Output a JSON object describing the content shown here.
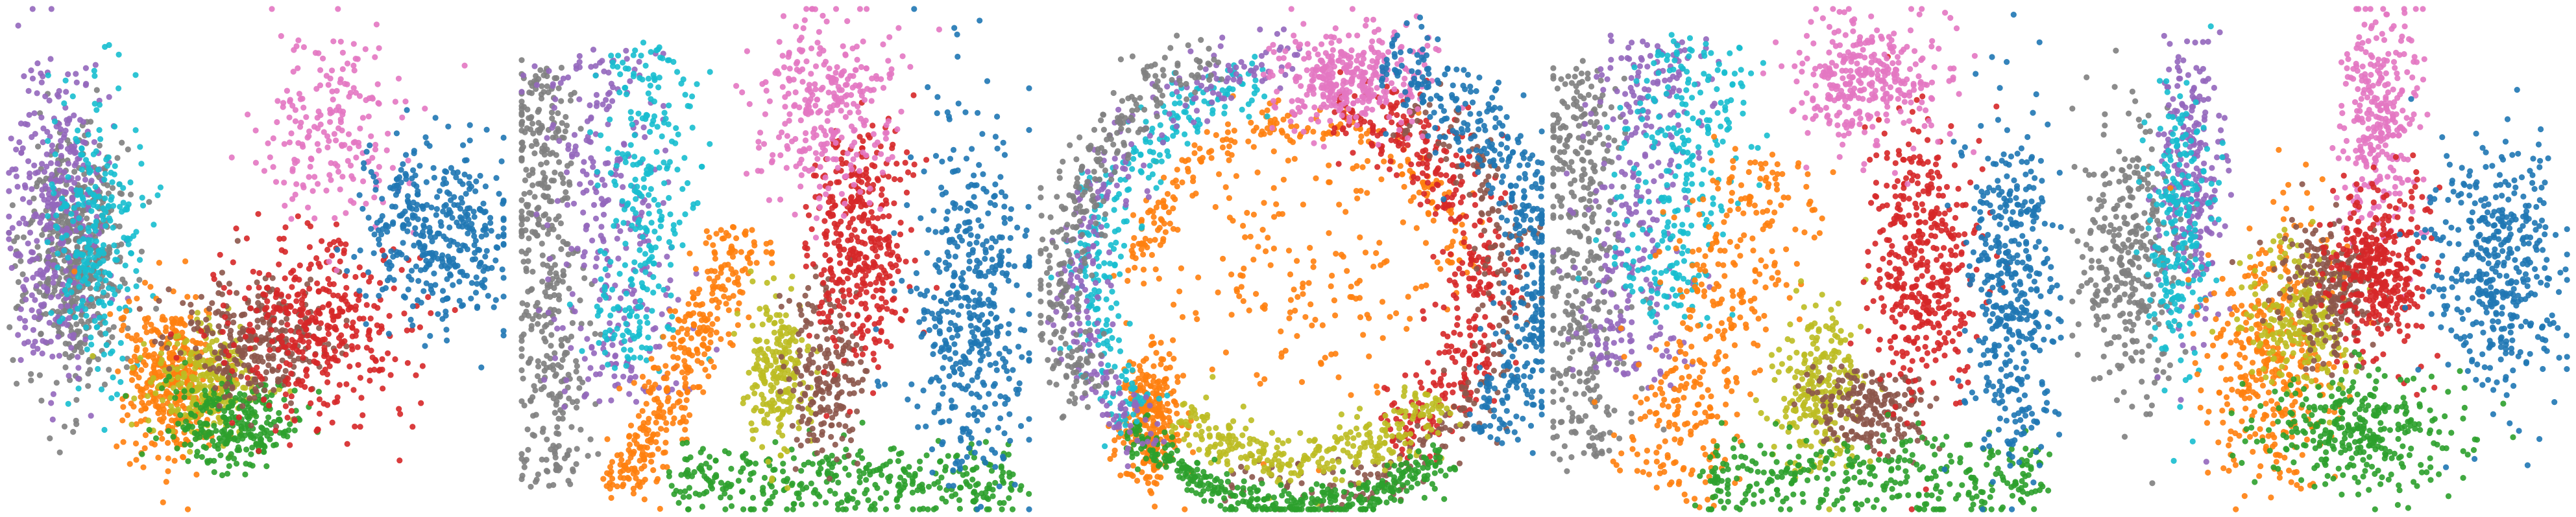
{
  "chart_data": {
    "type": "scatter",
    "axes_visible": false,
    "grid": false,
    "legend": "none",
    "point_opacity": 0.9,
    "cluster_colors": {
      "blue": "#1f77b4",
      "orange": "#ff7f0e",
      "green": "#2ca02c",
      "red": "#d62728",
      "purple": "#9467bd",
      "brown": "#8c564b",
      "pink": "#e377c2",
      "gray": "#7f7f7f",
      "olive": "#bcbd22",
      "cyan": "#17becf"
    },
    "panels": [
      {
        "id": "panel-1",
        "xlim": [
          0,
          1
        ],
        "ylim": [
          0,
          1
        ],
        "clusters": [
          {
            "color": "gray",
            "shape": "blob",
            "cx": 0.14,
            "cy": 0.5,
            "rx": 0.09,
            "ry": 0.23,
            "n": 520
          },
          {
            "color": "purple",
            "shape": "blob",
            "cx": 0.1,
            "cy": 0.42,
            "rx": 0.09,
            "ry": 0.28,
            "n": 340
          },
          {
            "color": "cyan",
            "shape": "blob",
            "cx": 0.18,
            "cy": 0.45,
            "rx": 0.08,
            "ry": 0.25,
            "n": 260
          },
          {
            "color": "orange",
            "shape": "blob",
            "cx": 0.33,
            "cy": 0.74,
            "rx": 0.09,
            "ry": 0.14,
            "n": 380
          },
          {
            "color": "olive",
            "shape": "blob",
            "cx": 0.4,
            "cy": 0.74,
            "rx": 0.1,
            "ry": 0.1,
            "n": 260
          },
          {
            "color": "green",
            "shape": "blob",
            "cx": 0.45,
            "cy": 0.82,
            "rx": 0.12,
            "ry": 0.09,
            "n": 260
          },
          {
            "color": "brown",
            "shape": "blob",
            "cx": 0.5,
            "cy": 0.66,
            "rx": 0.14,
            "ry": 0.11,
            "n": 280
          },
          {
            "color": "red",
            "shape": "blob",
            "cx": 0.62,
            "cy": 0.64,
            "rx": 0.16,
            "ry": 0.17,
            "n": 380
          },
          {
            "color": "pink",
            "shape": "blob",
            "cx": 0.65,
            "cy": 0.25,
            "rx": 0.13,
            "ry": 0.18,
            "n": 200
          },
          {
            "color": "blue",
            "shape": "blob",
            "cx": 0.86,
            "cy": 0.45,
            "rx": 0.13,
            "ry": 0.16,
            "n": 380
          }
        ]
      },
      {
        "id": "panel-2",
        "xlim": [
          0,
          1
        ],
        "ylim": [
          0,
          1
        ],
        "clusters": [
          {
            "color": "gray",
            "shape": "band",
            "x0": 0.04,
            "y0": 0.12,
            "x1": 0.07,
            "y1": 0.95,
            "spread": 0.035,
            "n": 420
          },
          {
            "color": "purple",
            "shape": "band",
            "x0": 0.14,
            "y0": 0.1,
            "x1": 0.22,
            "y1": 0.78,
            "spread": 0.06,
            "n": 300
          },
          {
            "color": "cyan",
            "shape": "band",
            "x0": 0.26,
            "y0": 0.08,
            "x1": 0.22,
            "y1": 0.72,
            "spread": 0.05,
            "n": 280
          },
          {
            "color": "orange",
            "shape": "band",
            "x0": 0.44,
            "y0": 0.45,
            "x1": 0.2,
            "y1": 0.97,
            "spread": 0.03,
            "n": 360
          },
          {
            "color": "green",
            "shape": "band",
            "x0": 0.3,
            "y0": 0.93,
            "x1": 0.98,
            "y1": 0.95,
            "spread": 0.035,
            "n": 360
          },
          {
            "color": "olive",
            "shape": "blob",
            "cx": 0.5,
            "cy": 0.72,
            "rx": 0.06,
            "ry": 0.13,
            "n": 220
          },
          {
            "color": "brown",
            "shape": "blob",
            "cx": 0.6,
            "cy": 0.72,
            "rx": 0.07,
            "ry": 0.16,
            "n": 200
          },
          {
            "color": "red",
            "shape": "blob",
            "cx": 0.66,
            "cy": 0.48,
            "rx": 0.09,
            "ry": 0.2,
            "n": 380
          },
          {
            "color": "pink",
            "shape": "blob",
            "cx": 0.6,
            "cy": 0.2,
            "rx": 0.12,
            "ry": 0.16,
            "n": 300
          },
          {
            "color": "blue",
            "shape": "blob",
            "cx": 0.88,
            "cy": 0.58,
            "rx": 0.11,
            "ry": 0.34,
            "n": 460
          }
        ]
      },
      {
        "id": "panel-3",
        "xlim": [
          0,
          1
        ],
        "ylim": [
          0,
          1
        ],
        "clusters": [
          {
            "color": "orange",
            "shape": "ring",
            "cx": 0.52,
            "cy": 0.55,
            "r": 0.32,
            "width": 0.02,
            "a0": 180,
            "a1": 360,
            "n": 220
          },
          {
            "color": "orange",
            "shape": "blob",
            "cx": 0.5,
            "cy": 0.52,
            "rx": 0.26,
            "ry": 0.26,
            "n": 180
          },
          {
            "color": "orange",
            "shape": "blob",
            "cx": 0.22,
            "cy": 0.82,
            "rx": 0.06,
            "ry": 0.12,
            "n": 280
          },
          {
            "color": "red",
            "shape": "ring",
            "cx": 0.52,
            "cy": 0.55,
            "r": 0.36,
            "width": 0.04,
            "a0": -80,
            "a1": 60,
            "n": 420
          },
          {
            "color": "brown",
            "shape": "ring",
            "cx": 0.52,
            "cy": 0.55,
            "r": 0.41,
            "width": 0.03,
            "a0": -60,
            "a1": 110,
            "n": 260
          },
          {
            "color": "olive",
            "shape": "ring",
            "cx": 0.52,
            "cy": 0.55,
            "r": 0.35,
            "width": 0.03,
            "a0": 40,
            "a1": 135,
            "n": 300
          },
          {
            "color": "green",
            "shape": "ring",
            "cx": 0.52,
            "cy": 0.55,
            "r": 0.44,
            "width": 0.02,
            "a0": 50,
            "a1": 140,
            "n": 380
          },
          {
            "color": "cyan",
            "shape": "ring",
            "cx": 0.52,
            "cy": 0.55,
            "r": 0.41,
            "width": 0.03,
            "a0": 140,
            "a1": 260,
            "n": 300
          },
          {
            "color": "purple",
            "shape": "ring",
            "cx": 0.52,
            "cy": 0.55,
            "r": 0.44,
            "width": 0.03,
            "a0": 130,
            "a1": 270,
            "n": 260
          },
          {
            "color": "gray",
            "shape": "ring",
            "cx": 0.52,
            "cy": 0.55,
            "r": 0.48,
            "width": 0.03,
            "a0": 150,
            "a1": 250,
            "n": 300
          },
          {
            "color": "pink",
            "shape": "blob",
            "cx": 0.62,
            "cy": 0.14,
            "rx": 0.14,
            "ry": 0.09,
            "n": 340
          },
          {
            "color": "blue",
            "shape": "ring",
            "cx": 0.52,
            "cy": 0.55,
            "r": 0.47,
            "width": 0.04,
            "a0": -70,
            "a1": 40,
            "n": 460
          }
        ]
      },
      {
        "id": "panel-4",
        "xlim": [
          0,
          1
        ],
        "ylim": [
          0,
          1
        ],
        "clusters": [
          {
            "color": "gray",
            "shape": "band",
            "x0": 0.05,
            "y0": 0.12,
            "x1": 0.07,
            "y1": 0.9,
            "spread": 0.04,
            "n": 380
          },
          {
            "color": "purple",
            "shape": "band",
            "x0": 0.2,
            "y0": 0.06,
            "x1": 0.14,
            "y1": 0.74,
            "spread": 0.06,
            "n": 320
          },
          {
            "color": "cyan",
            "shape": "band",
            "x0": 0.3,
            "y0": 0.08,
            "x1": 0.2,
            "y1": 0.62,
            "spread": 0.06,
            "n": 280
          },
          {
            "color": "orange",
            "shape": "band",
            "x0": 0.44,
            "y0": 0.3,
            "x1": 0.22,
            "y1": 0.95,
            "spread": 0.06,
            "n": 360
          },
          {
            "color": "olive",
            "shape": "blob",
            "cx": 0.52,
            "cy": 0.76,
            "rx": 0.08,
            "ry": 0.14,
            "n": 260
          },
          {
            "color": "brown",
            "shape": "blob",
            "cx": 0.62,
            "cy": 0.8,
            "rx": 0.1,
            "ry": 0.08,
            "n": 200
          },
          {
            "color": "red",
            "shape": "blob",
            "cx": 0.72,
            "cy": 0.5,
            "rx": 0.1,
            "ry": 0.26,
            "n": 420
          },
          {
            "color": "green",
            "shape": "band",
            "x0": 0.3,
            "y0": 0.93,
            "x1": 0.96,
            "y1": 0.93,
            "spread": 0.04,
            "n": 340
          },
          {
            "color": "pink",
            "shape": "blob",
            "cx": 0.62,
            "cy": 0.14,
            "rx": 0.13,
            "ry": 0.12,
            "n": 320
          },
          {
            "color": "blue",
            "shape": "blob",
            "cx": 0.9,
            "cy": 0.55,
            "rx": 0.08,
            "ry": 0.32,
            "n": 420
          }
        ]
      },
      {
        "id": "panel-5",
        "xlim": [
          0,
          1
        ],
        "ylim": [
          0,
          1
        ],
        "clusters": [
          {
            "color": "gray",
            "shape": "blob",
            "cx": 0.12,
            "cy": 0.5,
            "rx": 0.09,
            "ry": 0.25,
            "n": 340
          },
          {
            "color": "purple",
            "shape": "blob",
            "cx": 0.24,
            "cy": 0.35,
            "rx": 0.06,
            "ry": 0.26,
            "n": 260
          },
          {
            "color": "cyan",
            "shape": "blob",
            "cx": 0.22,
            "cy": 0.45,
            "rx": 0.06,
            "ry": 0.26,
            "n": 220
          },
          {
            "color": "pink",
            "shape": "blob",
            "cx": 0.62,
            "cy": 0.22,
            "rx": 0.07,
            "ry": 0.2,
            "n": 300
          },
          {
            "color": "orange",
            "shape": "blob",
            "cx": 0.4,
            "cy": 0.68,
            "rx": 0.12,
            "ry": 0.24,
            "n": 380
          },
          {
            "color": "olive",
            "shape": "blob",
            "cx": 0.46,
            "cy": 0.62,
            "rx": 0.1,
            "ry": 0.14,
            "n": 240
          },
          {
            "color": "brown",
            "shape": "blob",
            "cx": 0.52,
            "cy": 0.56,
            "rx": 0.1,
            "ry": 0.12,
            "n": 220
          },
          {
            "color": "red",
            "shape": "blob",
            "cx": 0.62,
            "cy": 0.52,
            "rx": 0.09,
            "ry": 0.15,
            "n": 360
          },
          {
            "color": "green",
            "shape": "blob",
            "cx": 0.58,
            "cy": 0.84,
            "rx": 0.18,
            "ry": 0.1,
            "n": 320
          },
          {
            "color": "blue",
            "shape": "blob",
            "cx": 0.86,
            "cy": 0.52,
            "rx": 0.12,
            "ry": 0.24,
            "n": 420
          }
        ]
      }
    ]
  }
}
